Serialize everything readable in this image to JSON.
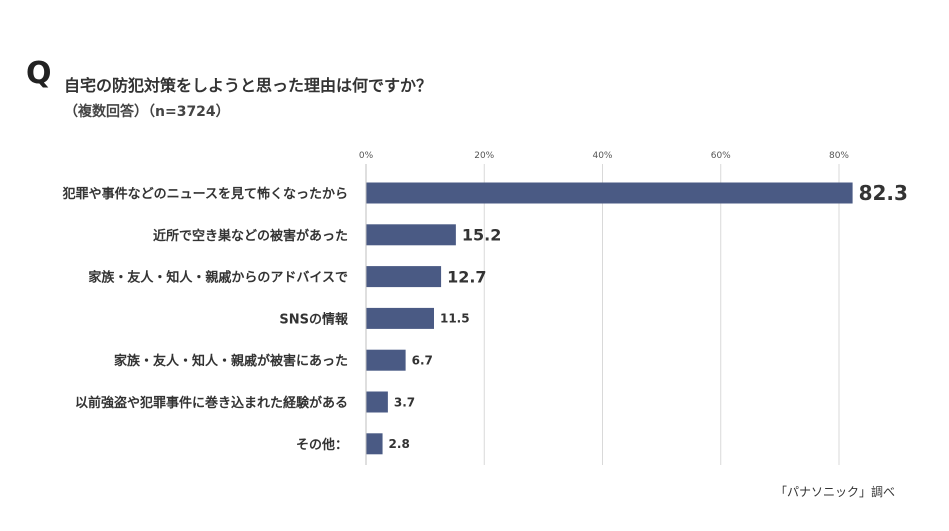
{
  "header": {
    "q_mark": "Q",
    "title": "自宅の防犯対策をしようと思った理由は何ですか？",
    "subtitle": "（複数回答）（n=3724）"
  },
  "footer": {
    "source": "「パナソニック」調べ"
  },
  "colors": {
    "bar": "#4a5a84",
    "grid": "#d9d9d9",
    "text": "#333333"
  },
  "chart_data": {
    "type": "bar",
    "orientation": "horizontal",
    "title": "自宅の防犯対策をしようと思った理由は何ですか？",
    "xlim": [
      0,
      90
    ],
    "x_ticks": [
      0,
      20,
      40,
      60,
      80
    ],
    "x_tick_labels": [
      "0%",
      "20%",
      "40%",
      "60%",
      "80%"
    ],
    "grid": true,
    "categories": [
      "犯罪や事件などのニュースを見て怖くなったから",
      "近所で空き巣などの被害があった",
      "家族・友人・知人・親戚からのアドバイスで",
      "SNSの情報",
      "家族・友人・知人・親戚が被害にあった",
      "以前強盗や犯罪事件に巻き込まれた経験がある",
      "その他："
    ],
    "values": [
      82.3,
      15.2,
      12.7,
      11.5,
      6.7,
      3.7,
      2.8
    ],
    "value_labels": [
      "82.3",
      "15.2",
      "12.7",
      "11.5",
      "6.7",
      "3.7",
      "2.8"
    ]
  }
}
